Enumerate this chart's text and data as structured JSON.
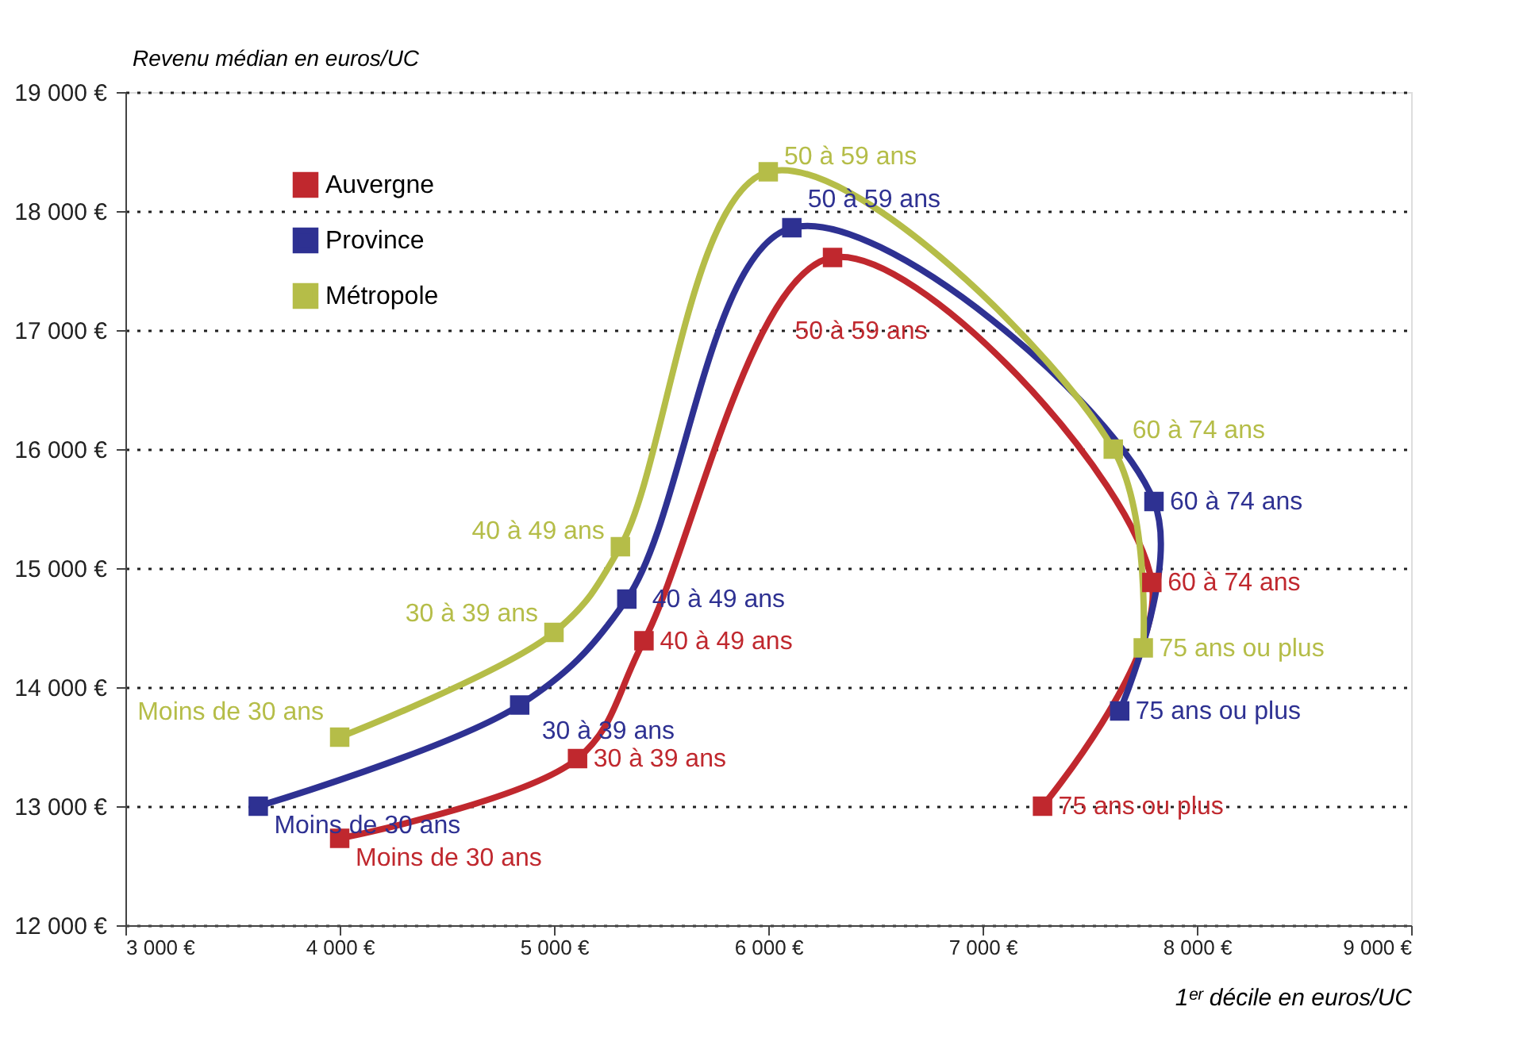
{
  "chart_data": {
    "type": "line",
    "xlabel": "1ᵉʳ décile en euros/UC",
    "ylabel": "Revenu médian en euros/UC",
    "xlim": [
      3000,
      9000
    ],
    "xticks": [
      {
        "value": 3000,
        "label": "3 000 €"
      },
      {
        "value": 4000,
        "label": "4 000 €"
      },
      {
        "value": 5000,
        "label": "5 000 €"
      },
      {
        "value": 6000,
        "label": "6 000 €"
      },
      {
        "value": 7000,
        "label": "7 000 €"
      },
      {
        "value": 8000,
        "label": "8 000 €"
      },
      {
        "value": 9000,
        "label": "9 000 €"
      }
    ],
    "ylim": [
      12000,
      19000
    ],
    "yticks": [
      {
        "value": 12000,
        "label": "12 000 €"
      },
      {
        "value": 13000,
        "label": "13 000 €"
      },
      {
        "value": 14000,
        "label": "14 000 €"
      },
      {
        "value": 15000,
        "label": "15 000 €"
      },
      {
        "value": 16000,
        "label": "16 000 €"
      },
      {
        "value": 17000,
        "label": "17 000 €"
      },
      {
        "value": 18000,
        "label": "18 000 €"
      },
      {
        "value": 19000,
        "label": "19 000 €"
      }
    ],
    "grid": "y",
    "legend": "top left",
    "marker": "square",
    "line_style": "solid",
    "series": [
      {
        "name": "Auvergne",
        "color": "#c0282e",
        "x": [
          4000,
          5110,
          5420,
          6300,
          7790,
          7280
        ],
        "values": [
          12730,
          13400,
          14390,
          17610,
          14880,
          13000
        ]
      },
      {
        "name": "Province",
        "color": "#2e3192",
        "x": [
          3620,
          4840,
          5340,
          6110,
          7800,
          7640
        ],
        "values": [
          13000,
          13850,
          14740,
          17860,
          15560,
          13800
        ]
      },
      {
        "name": "Métropole",
        "color": "#b5bd48",
        "x": [
          4000,
          5000,
          5310,
          6000,
          7610,
          7750
        ],
        "values": [
          13580,
          14460,
          15180,
          18330,
          16000,
          14330
        ]
      }
    ],
    "annotations": [
      {
        "text": "Moins de 30 ans",
        "x": 4000,
        "y": 12730
      },
      {
        "text": "30 à 39 ans",
        "x": 5110,
        "y": 13400
      },
      {
        "text": "40 à 49 ans",
        "x": 5420,
        "y": 14390
      },
      {
        "text": "50 à 59 ans",
        "x": 6300,
        "y": 17610
      },
      {
        "text": "60 à 74 ans",
        "x": 7790,
        "y": 14880
      },
      {
        "text": "75 ans ou plus",
        "x": 7280,
        "y": 13000
      },
      {
        "text": "Moins de 30 ans",
        "x": 3620,
        "y": 13000
      },
      {
        "text": "30 à 39 ans",
        "x": 4840,
        "y": 13850
      },
      {
        "text": "40 à 49 ans",
        "x": 5340,
        "y": 14740
      },
      {
        "text": "50 à 59 ans",
        "x": 6110,
        "y": 17860
      },
      {
        "text": "60 à 74 ans",
        "x": 7800,
        "y": 15560
      },
      {
        "text": "75 ans ou plus",
        "x": 7640,
        "y": 13800
      },
      {
        "text": "Moins de 30 ans",
        "x": 4000,
        "y": 13580
      },
      {
        "text": "30 à 39 ans",
        "x": 5000,
        "y": 14460
      },
      {
        "text": "40 à 49 ans",
        "x": 5310,
        "y": 15180
      },
      {
        "text": "50 à 59 ans",
        "x": 6000,
        "y": 18330
      },
      {
        "text": "60 à 74 ans",
        "x": 7610,
        "y": 16000
      },
      {
        "text": "75 ans ou plus",
        "x": 7750,
        "y": 14330
      }
    ]
  }
}
